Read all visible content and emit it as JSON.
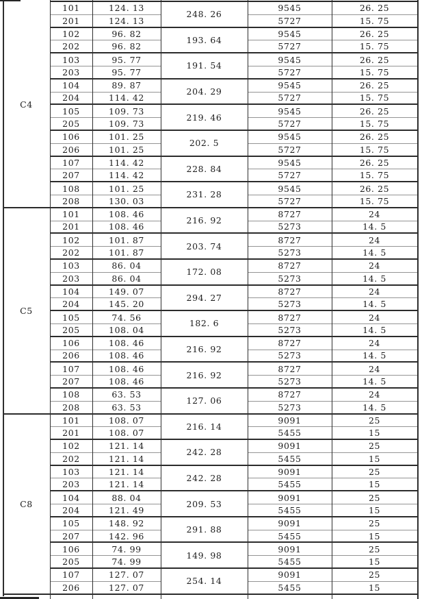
{
  "table": {
    "sections": [
      {
        "group": "C4",
        "col5": [
          "9545",
          "5727"
        ],
        "col6": [
          "26. 25",
          "15. 75"
        ],
        "pairs": [
          {
            "units": [
              "101",
              "201"
            ],
            "values": [
              "124. 13",
              "124. 13"
            ],
            "sum": "248. 26"
          },
          {
            "units": [
              "102",
              "202"
            ],
            "values": [
              "96. 82",
              "96. 82"
            ],
            "sum": "193. 64"
          },
          {
            "units": [
              "103",
              "203"
            ],
            "values": [
              "95. 77",
              "95. 77"
            ],
            "sum": "191. 54"
          },
          {
            "units": [
              "104",
              "204"
            ],
            "values": [
              "89. 87",
              "114. 42"
            ],
            "sum": "204. 29"
          },
          {
            "units": [
              "105",
              "205"
            ],
            "values": [
              "109. 73",
              "109. 73"
            ],
            "sum": "219. 46"
          },
          {
            "units": [
              "106",
              "206"
            ],
            "values": [
              "101. 25",
              "101. 25"
            ],
            "sum": "202. 5"
          },
          {
            "units": [
              "107",
              "207"
            ],
            "values": [
              "114. 42",
              "114. 42"
            ],
            "sum": "228. 84"
          },
          {
            "units": [
              "108",
              "208"
            ],
            "values": [
              "101. 25",
              "130. 03"
            ],
            "sum": "231. 28"
          }
        ]
      },
      {
        "group": "C5",
        "col5": [
          "8727",
          "5273"
        ],
        "col6": [
          "24",
          "14. 5"
        ],
        "pairs": [
          {
            "units": [
              "101",
              "201"
            ],
            "values": [
              "108. 46",
              "108. 46"
            ],
            "sum": "216. 92"
          },
          {
            "units": [
              "102",
              "202"
            ],
            "values": [
              "101. 87",
              "101. 87"
            ],
            "sum": "203. 74"
          },
          {
            "units": [
              "103",
              "203"
            ],
            "values": [
              "86. 04",
              "86. 04"
            ],
            "sum": "172. 08"
          },
          {
            "units": [
              "104",
              "204"
            ],
            "values": [
              "149. 07",
              "145. 20"
            ],
            "sum": "294. 27"
          },
          {
            "units": [
              "105",
              "205"
            ],
            "values": [
              "74. 56",
              "108. 04"
            ],
            "sum": "182. 6"
          },
          {
            "units": [
              "106",
              "206"
            ],
            "values": [
              "108. 46",
              "108. 46"
            ],
            "sum": "216. 92"
          },
          {
            "units": [
              "107",
              "207"
            ],
            "values": [
              "108. 46",
              "108. 46"
            ],
            "sum": "216. 92"
          },
          {
            "units": [
              "108",
              "208"
            ],
            "values": [
              "63. 53",
              "63. 53"
            ],
            "sum": "127. 06"
          }
        ]
      },
      {
        "group": "C8",
        "col5": [
          "9091",
          "5455"
        ],
        "col6": [
          "25",
          "15"
        ],
        "pairs": [
          {
            "units": [
              "101",
              "201"
            ],
            "values": [
              "108. 07",
              "108. 07"
            ],
            "sum": "216. 14"
          },
          {
            "units": [
              "102",
              "202"
            ],
            "values": [
              "121. 14",
              "121. 14"
            ],
            "sum": "242. 28"
          },
          {
            "units": [
              "103",
              "203"
            ],
            "values": [
              "121. 14",
              "121. 14"
            ],
            "sum": "242. 28"
          },
          {
            "units": [
              "104",
              "204"
            ],
            "values": [
              "88. 04",
              "121. 49"
            ],
            "sum": "209. 53"
          },
          {
            "units": [
              "105",
              "207"
            ],
            "values": [
              "148. 92",
              "142. 96"
            ],
            "sum": "291. 88"
          },
          {
            "units": [
              "106",
              "205"
            ],
            "values": [
              "74. 99",
              "74. 99"
            ],
            "sum": "149. 98"
          },
          {
            "units": [
              "107",
              "206"
            ],
            "values": [
              "127. 07",
              "127. 07"
            ],
            "sum": "254. 14"
          }
        ]
      }
    ]
  },
  "colors": {
    "background": "#ffffff",
    "text": "#1c1c1c",
    "line_dark": "#2b2b2b",
    "line_light": "#949494"
  }
}
